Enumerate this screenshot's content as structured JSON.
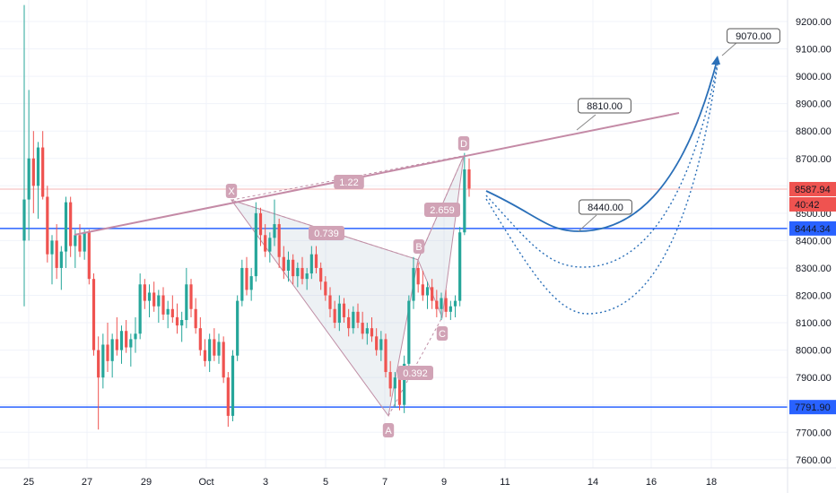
{
  "chart_data": {
    "type": "candlestick",
    "title": "",
    "xlabel": "",
    "ylabel": "",
    "x_ticks": [
      "25",
      "27",
      "29",
      "Oct",
      "3",
      "5",
      "7",
      "9",
      "11",
      "14",
      "16",
      "18"
    ],
    "y_ticks": [
      "7600.00",
      "7700.00",
      "7800.00",
      "7900.00",
      "8000.00",
      "8100.00",
      "8200.00",
      "8300.00",
      "8400.00",
      "8500.00",
      "8600.00",
      "8700.00",
      "8800.00",
      "8900.00",
      "9000.00",
      "9100.00",
      "9200.00"
    ],
    "ylim": [
      7580,
      9280
    ],
    "grid": true,
    "current_price": "8587.94",
    "countdown": "40:42",
    "horizontal_levels": [
      {
        "label": "8444.34",
        "value": 8444.34,
        "color": "#2962ff"
      },
      {
        "label": "7791.90",
        "value": 7791.9,
        "color": "#2962ff"
      }
    ],
    "pattern": {
      "points": [
        {
          "label": "X",
          "value": 8548
        },
        {
          "label": "A",
          "value": 7760
        },
        {
          "label": "B",
          "value": 8330
        },
        {
          "label": "C",
          "value": 8120
        },
        {
          "label": "D",
          "value": 8710
        }
      ],
      "ratios": [
        "0.739",
        "0.392",
        "2.659",
        "1.22"
      ]
    },
    "trendline_label": "8810.00",
    "projection_labels": [
      "8440.00",
      "9070.00"
    ],
    "colors": {
      "up": "#26a69a",
      "down": "#ef5350",
      "pattern": "#c08fa6",
      "projection": "#2a6fb8",
      "level": "#2962ff",
      "price": "#ef5350"
    },
    "candles": [
      {
        "o": 8400,
        "h": 9260,
        "l": 8160,
        "c": 8550
      },
      {
        "o": 8550,
        "h": 8950,
        "l": 8400,
        "c": 8700
      },
      {
        "o": 8700,
        "h": 8800,
        "l": 8500,
        "c": 8600
      },
      {
        "o": 8600,
        "h": 8760,
        "l": 8480,
        "c": 8740
      },
      {
        "o": 8740,
        "h": 8800,
        "l": 8550,
        "c": 8560
      },
      {
        "o": 8560,
        "h": 8600,
        "l": 8320,
        "c": 8350
      },
      {
        "o": 8350,
        "h": 8420,
        "l": 8240,
        "c": 8400
      },
      {
        "o": 8400,
        "h": 8460,
        "l": 8260,
        "c": 8300
      },
      {
        "o": 8300,
        "h": 8380,
        "l": 8220,
        "c": 8360
      },
      {
        "o": 8360,
        "h": 8560,
        "l": 8300,
        "c": 8540
      },
      {
        "o": 8540,
        "h": 8560,
        "l": 8340,
        "c": 8380
      },
      {
        "o": 8380,
        "h": 8440,
        "l": 8300,
        "c": 8420
      },
      {
        "o": 8420,
        "h": 8460,
        "l": 8340,
        "c": 8360
      },
      {
        "o": 8360,
        "h": 8440,
        "l": 8330,
        "c": 8430
      },
      {
        "o": 8430,
        "h": 8440,
        "l": 8240,
        "c": 8260
      },
      {
        "o": 8260,
        "h": 8280,
        "l": 7980,
        "c": 8000
      },
      {
        "o": 8000,
        "h": 8050,
        "l": 7710,
        "c": 7900
      },
      {
        "o": 7900,
        "h": 8060,
        "l": 7860,
        "c": 8020
      },
      {
        "o": 8020,
        "h": 8100,
        "l": 7920,
        "c": 7960
      },
      {
        "o": 7960,
        "h": 8060,
        "l": 7900,
        "c": 8040
      },
      {
        "o": 8040,
        "h": 8120,
        "l": 7980,
        "c": 8000
      },
      {
        "o": 8000,
        "h": 8090,
        "l": 7950,
        "c": 8070
      },
      {
        "o": 8070,
        "h": 8110,
        "l": 7990,
        "c": 8010
      },
      {
        "o": 8010,
        "h": 8060,
        "l": 7940,
        "c": 8040
      },
      {
        "o": 8040,
        "h": 8120,
        "l": 7990,
        "c": 8060
      },
      {
        "o": 8060,
        "h": 8280,
        "l": 8040,
        "c": 8240
      },
      {
        "o": 8240,
        "h": 8260,
        "l": 8150,
        "c": 8180
      },
      {
        "o": 8180,
        "h": 8240,
        "l": 8120,
        "c": 8210
      },
      {
        "o": 8210,
        "h": 8250,
        "l": 8140,
        "c": 8160
      },
      {
        "o": 8160,
        "h": 8220,
        "l": 8100,
        "c": 8200
      },
      {
        "o": 8200,
        "h": 8230,
        "l": 8110,
        "c": 8130
      },
      {
        "o": 8130,
        "h": 8180,
        "l": 8080,
        "c": 8150
      },
      {
        "o": 8150,
        "h": 8200,
        "l": 8100,
        "c": 8120
      },
      {
        "o": 8120,
        "h": 8170,
        "l": 8060,
        "c": 8090
      },
      {
        "o": 8090,
        "h": 8140,
        "l": 8030,
        "c": 8110
      },
      {
        "o": 8110,
        "h": 8300,
        "l": 8080,
        "c": 8240
      },
      {
        "o": 8240,
        "h": 8260,
        "l": 8120,
        "c": 8150
      },
      {
        "o": 8150,
        "h": 8190,
        "l": 8060,
        "c": 8080
      },
      {
        "o": 8080,
        "h": 8120,
        "l": 7980,
        "c": 8000
      },
      {
        "o": 8000,
        "h": 8040,
        "l": 7940,
        "c": 7960
      },
      {
        "o": 7960,
        "h": 8060,
        "l": 7920,
        "c": 8040
      },
      {
        "o": 8040,
        "h": 8080,
        "l": 7960,
        "c": 7980
      },
      {
        "o": 7980,
        "h": 8060,
        "l": 7950,
        "c": 8030
      },
      {
        "o": 8030,
        "h": 8050,
        "l": 7880,
        "c": 7900
      },
      {
        "o": 7900,
        "h": 7920,
        "l": 7720,
        "c": 7760
      },
      {
        "o": 7760,
        "h": 8000,
        "l": 7740,
        "c": 7980
      },
      {
        "o": 7980,
        "h": 8200,
        "l": 7960,
        "c": 8180
      },
      {
        "o": 8180,
        "h": 8330,
        "l": 8160,
        "c": 8300
      },
      {
        "o": 8300,
        "h": 8340,
        "l": 8200,
        "c": 8220
      },
      {
        "o": 8220,
        "h": 8300,
        "l": 8180,
        "c": 8270
      },
      {
        "o": 8270,
        "h": 8540,
        "l": 8250,
        "c": 8500
      },
      {
        "o": 8500,
        "h": 8520,
        "l": 8380,
        "c": 8420
      },
      {
        "o": 8420,
        "h": 8460,
        "l": 8340,
        "c": 8360
      },
      {
        "o": 8360,
        "h": 8430,
        "l": 8320,
        "c": 8410
      },
      {
        "o": 8410,
        "h": 8550,
        "l": 8380,
        "c": 8460
      },
      {
        "o": 8460,
        "h": 8480,
        "l": 8300,
        "c": 8340
      },
      {
        "o": 8340,
        "h": 8380,
        "l": 8260,
        "c": 8290
      },
      {
        "o": 8290,
        "h": 8360,
        "l": 8250,
        "c": 8330
      },
      {
        "o": 8330,
        "h": 8350,
        "l": 8240,
        "c": 8270
      },
      {
        "o": 8270,
        "h": 8320,
        "l": 8230,
        "c": 8300
      },
      {
        "o": 8300,
        "h": 8340,
        "l": 8240,
        "c": 8260
      },
      {
        "o": 8260,
        "h": 8300,
        "l": 8220,
        "c": 8280
      },
      {
        "o": 8280,
        "h": 8380,
        "l": 8260,
        "c": 8350
      },
      {
        "o": 8350,
        "h": 8380,
        "l": 8280,
        "c": 8300
      },
      {
        "o": 8300,
        "h": 8320,
        "l": 8220,
        "c": 8250
      },
      {
        "o": 8250,
        "h": 8270,
        "l": 8180,
        "c": 8200
      },
      {
        "o": 8200,
        "h": 8230,
        "l": 8120,
        "c": 8150
      },
      {
        "o": 8150,
        "h": 8180,
        "l": 8080,
        "c": 8100
      },
      {
        "o": 8100,
        "h": 8200,
        "l": 8070,
        "c": 8170
      },
      {
        "o": 8170,
        "h": 8190,
        "l": 8100,
        "c": 8120
      },
      {
        "o": 8120,
        "h": 8150,
        "l": 8050,
        "c": 8080
      },
      {
        "o": 8080,
        "h": 8160,
        "l": 8060,
        "c": 8140
      },
      {
        "o": 8140,
        "h": 8170,
        "l": 8080,
        "c": 8100
      },
      {
        "o": 8100,
        "h": 8140,
        "l": 8040,
        "c": 8060
      },
      {
        "o": 8060,
        "h": 8100,
        "l": 8020,
        "c": 8080
      },
      {
        "o": 8080,
        "h": 8120,
        "l": 8030,
        "c": 8050
      },
      {
        "o": 8050,
        "h": 8080,
        "l": 7980,
        "c": 8000
      },
      {
        "o": 8000,
        "h": 8070,
        "l": 7960,
        "c": 8040
      },
      {
        "o": 8040,
        "h": 8060,
        "l": 7900,
        "c": 7920
      },
      {
        "o": 7920,
        "h": 7960,
        "l": 7830,
        "c": 7860
      },
      {
        "o": 7860,
        "h": 7920,
        "l": 7790,
        "c": 7900
      },
      {
        "o": 7900,
        "h": 7930,
        "l": 7780,
        "c": 7800
      },
      {
        "o": 7800,
        "h": 7980,
        "l": 7770,
        "c": 7950
      },
      {
        "o": 7950,
        "h": 8200,
        "l": 7920,
        "c": 8180
      },
      {
        "o": 8180,
        "h": 8340,
        "l": 8150,
        "c": 8300
      },
      {
        "o": 8300,
        "h": 8320,
        "l": 8210,
        "c": 8240
      },
      {
        "o": 8240,
        "h": 8290,
        "l": 8180,
        "c": 8200
      },
      {
        "o": 8200,
        "h": 8250,
        "l": 8150,
        "c": 8230
      },
      {
        "o": 8230,
        "h": 8260,
        "l": 8150,
        "c": 8180
      },
      {
        "o": 8180,
        "h": 8220,
        "l": 8120,
        "c": 8150
      },
      {
        "o": 8150,
        "h": 8210,
        "l": 8110,
        "c": 8190
      },
      {
        "o": 8190,
        "h": 8220,
        "l": 8120,
        "c": 8140
      },
      {
        "o": 8140,
        "h": 8180,
        "l": 8110,
        "c": 8160
      },
      {
        "o": 8160,
        "h": 8200,
        "l": 8120,
        "c": 8180
      },
      {
        "o": 8180,
        "h": 8450,
        "l": 8160,
        "c": 8430
      },
      {
        "o": 8430,
        "h": 8720,
        "l": 8420,
        "c": 8660
      },
      {
        "o": 8660,
        "h": 8700,
        "l": 8560,
        "c": 8590
      }
    ]
  }
}
